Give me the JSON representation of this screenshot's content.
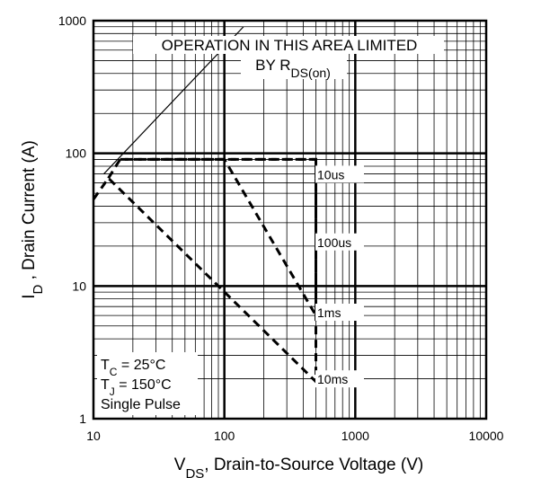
{
  "chart_data": {
    "type": "line",
    "x_scale": "log",
    "y_scale": "log",
    "xlim": [
      10,
      10000
    ],
    "ylim": [
      1,
      1000
    ],
    "grid": true,
    "x_ticks": [
      "10",
      "100",
      "1000",
      "10000"
    ],
    "y_ticks": [
      "1",
      "10",
      "100",
      "1000"
    ],
    "xlabel": {
      "main": "V",
      "sub": "DS",
      "rest": ", Drain-to-Source Voltage (V)"
    },
    "ylabel": {
      "main": "I",
      "sub": "D",
      "rest": " , Drain Current (A)"
    },
    "series": [
      {
        "name": "10us",
        "x": [
          16,
          500,
          500
        ],
        "y": [
          90,
          90,
          65
        ]
      },
      {
        "name": "100us",
        "x": [
          27,
          500,
          500
        ],
        "y": [
          90,
          90,
          20
        ]
      },
      {
        "name": "1ms",
        "x": [
          13,
          16,
          100,
          500,
          500
        ],
        "y": [
          65,
          90,
          90,
          6,
          90
        ]
      },
      {
        "name": "10ms",
        "x": [
          10,
          13,
          500,
          500
        ],
        "y": [
          45,
          65,
          1.9,
          90
        ]
      }
    ],
    "rds_limit_line": {
      "x": [
        12,
        140
      ],
      "y": [
        70,
        900
      ]
    },
    "annotations": {
      "limit_line1": "OPERATION IN THIS AREA LIMITED",
      "limit_line2_prefix": "BY R",
      "limit_line2_sub": "DS(on)",
      "conditions": [
        {
          "main": "T",
          "sub": "C",
          "rest": " = 25°C"
        },
        {
          "main": "T",
          "sub": "J",
          "rest": " = 150°C"
        },
        {
          "main": "Single Pulse",
          "sub": "",
          "rest": ""
        }
      ]
    },
    "colors": {
      "line": "#000000",
      "grid": "#000000",
      "background": "#ffffff"
    }
  }
}
